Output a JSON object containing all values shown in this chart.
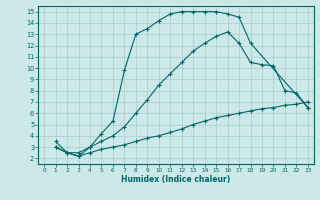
{
  "xlabel": "Humidex (Indice chaleur)",
  "bg_color": "#cce8e8",
  "line_color": "#006666",
  "grid_color": "#a8cccc",
  "xlim": [
    -0.5,
    23.5
  ],
  "ylim": [
    1.5,
    15.5
  ],
  "xticks": [
    0,
    1,
    2,
    3,
    4,
    5,
    6,
    7,
    8,
    9,
    10,
    11,
    12,
    13,
    14,
    15,
    16,
    17,
    18,
    19,
    20,
    21,
    22,
    23
  ],
  "yticks": [
    2,
    3,
    4,
    5,
    6,
    7,
    8,
    9,
    10,
    11,
    12,
    13,
    14,
    15
  ],
  "line1_x": [
    1,
    2,
    3,
    4,
    5,
    6,
    7,
    8,
    9,
    10,
    11,
    12,
    13,
    14,
    15,
    16,
    17,
    18,
    23
  ],
  "line1_y": [
    3.5,
    2.5,
    2.2,
    3.0,
    4.2,
    5.3,
    9.8,
    13.0,
    13.5,
    14.2,
    14.8,
    15.0,
    15.0,
    15.0,
    15.0,
    14.8,
    14.5,
    12.2,
    6.5
  ],
  "line2_x": [
    1,
    2,
    3,
    4,
    5,
    6,
    7,
    8,
    9,
    10,
    11,
    12,
    13,
    14,
    15,
    16,
    17,
    18,
    19,
    20,
    21,
    22,
    23
  ],
  "line2_y": [
    3.0,
    2.5,
    2.5,
    3.0,
    3.5,
    4.0,
    4.8,
    6.0,
    7.2,
    8.5,
    9.5,
    10.5,
    11.5,
    12.2,
    12.8,
    13.2,
    12.2,
    10.5,
    10.3,
    10.2,
    8.0,
    7.8,
    6.5
  ],
  "line3_x": [
    1,
    2,
    3,
    4,
    5,
    6,
    7,
    8,
    9,
    10,
    11,
    12,
    13,
    14,
    15,
    16,
    17,
    18,
    19,
    20,
    21,
    22,
    23
  ],
  "line3_y": [
    3.0,
    2.5,
    2.2,
    2.5,
    2.8,
    3.0,
    3.2,
    3.5,
    3.8,
    4.0,
    4.3,
    4.6,
    5.0,
    5.3,
    5.6,
    5.8,
    6.0,
    6.2,
    6.4,
    6.5,
    6.7,
    6.8,
    7.0
  ]
}
